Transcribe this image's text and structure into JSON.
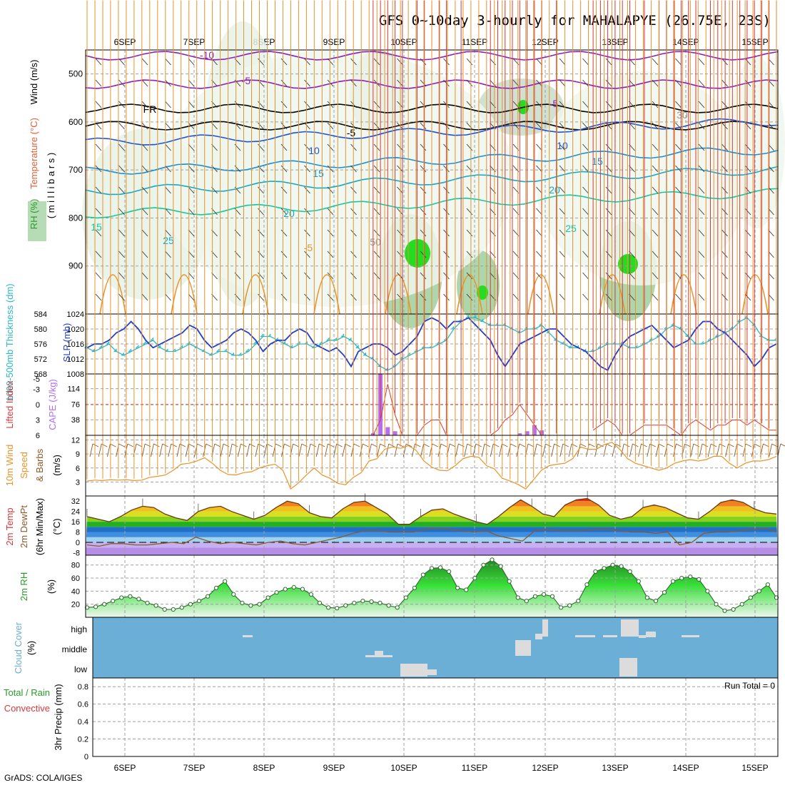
{
  "title": "GFS 0~10day 3-hourly for MAHALAPYE (26.75E, 23S)",
  "footer": "GrADS: COLA/IGES",
  "days": [
    "6SEP",
    "7SEP",
    "8SEP",
    "9SEP",
    "10SEP",
    "11SEP",
    "12SEP",
    "13SEP",
    "14SEP",
    "15SEP"
  ],
  "colors": {
    "grid": "#a0a0a0",
    "slp": "#1d3ecf",
    "thickness": "#2bb8c8",
    "lifted": "#d63a3a",
    "cape": "#b46ef0",
    "wind": "#e8932a",
    "rh": "#2a9a2a",
    "cloud": "#6baed6",
    "cloudbar": "#dcdcdc",
    "barb": "#8a5a2a"
  },
  "chart_data": [
    {
      "type": "area",
      "panel": "upper-air",
      "ylabel_parts": [
        {
          "text": "Wind (m/s)",
          "color": "#000000"
        },
        {
          "text": "Temperature (°C)",
          "color": "#e0603a"
        },
        {
          "text": "RH (%)",
          "color": "#2a9a2a"
        },
        {
          "text": "( m i l l i b a r s )",
          "color": "#000000"
        }
      ],
      "yticks": [
        500,
        600,
        700,
        800,
        900
      ],
      "ylim": [
        1000,
        450
      ],
      "contour_labels": [
        "-10",
        "-5",
        "FR",
        "-5",
        "10",
        "15",
        "20",
        "25",
        "15",
        "-5",
        "10",
        "15",
        "20",
        "25",
        "-5",
        "30",
        "50"
      ]
    },
    {
      "type": "line",
      "panel": "slp-thickness",
      "ylabel_left": "1000-500mb Thickness (dm)",
      "ylabel_right": "SLP (mb)",
      "yticks_left": [
        568,
        572,
        576,
        580,
        584
      ],
      "yticks_right": [
        1008,
        1012,
        1016,
        1020,
        1024
      ],
      "series": [
        {
          "name": "SLP (mb)",
          "values": [
            1015,
            1016,
            1016,
            1017,
            1019,
            1020,
            1022,
            1020,
            1017,
            1015,
            1016,
            1017,
            1018,
            1019,
            1021,
            1020,
            1017,
            1015,
            1016,
            1017,
            1019,
            1020,
            1019,
            1017,
            1014,
            1016,
            1017,
            1017,
            1019,
            1020,
            1019,
            1016,
            1015,
            1014,
            1015,
            1013,
            1010,
            1014,
            1015,
            1016,
            1016,
            1015,
            1013,
            1014,
            1016,
            1018,
            1022,
            1023,
            1022,
            1020,
            1022,
            1022,
            1023,
            1021,
            1019,
            1017,
            1013,
            1010,
            1013,
            1016,
            1017,
            1018,
            1019,
            1020,
            1020,
            1018,
            1016,
            1015,
            1014,
            1012,
            1010,
            1009,
            1013,
            1016,
            1018,
            1019,
            1020,
            1021,
            1019,
            1017,
            1015,
            1016,
            1017,
            1020,
            1022,
            1022,
            1020,
            1019,
            1017,
            1015,
            1013,
            1010,
            1012,
            1015,
            1016
          ]
        },
        {
          "name": "1000-500mb Thickness (dm)",
          "values": [
            575,
            574,
            575,
            576,
            574,
            573,
            574,
            575,
            576,
            577,
            575,
            574,
            574,
            575,
            576,
            575,
            574,
            573,
            574,
            574,
            573,
            573,
            574,
            576,
            578,
            578,
            577,
            576,
            575,
            576,
            576,
            575,
            576,
            577,
            577,
            578,
            577,
            575,
            573,
            572,
            570,
            569,
            570,
            572,
            573,
            574,
            575,
            575,
            576,
            577,
            580,
            582,
            583,
            583,
            582,
            581,
            581,
            581,
            580,
            579,
            580,
            580,
            581,
            579,
            577,
            576,
            575,
            575,
            574,
            574,
            575,
            576,
            576,
            576,
            575,
            575,
            576,
            577,
            578,
            580,
            581,
            580,
            578,
            576,
            576,
            577,
            578,
            579,
            580,
            582,
            583,
            581,
            578,
            577,
            577
          ]
        }
      ]
    },
    {
      "type": "bar",
      "panel": "stability",
      "ylabel_left": "Lifted Index",
      "ylabel_right": "CAPE (J/kg)",
      "yticks_left": [
        "-5",
        "-3",
        "0",
        "3",
        "6"
      ],
      "yticks_right": [
        38,
        76,
        114
      ],
      "series": [
        {
          "name": "CAPE (J/kg)",
          "x": [
            39,
            40,
            41,
            42,
            59,
            60,
            61,
            62,
            80
          ],
          "values": [
            5,
            150,
            20,
            10,
            5,
            10,
            25,
            12,
            3
          ]
        },
        {
          "name": "Lifted Index",
          "x": [
            39,
            40,
            41,
            42,
            43,
            45,
            46,
            47,
            48,
            49,
            51,
            55,
            56,
            57,
            58,
            59,
            60,
            61,
            62,
            64,
            69,
            70,
            71,
            72,
            73,
            74,
            76,
            78,
            79,
            80,
            81,
            82,
            83,
            85,
            86,
            87,
            88,
            89,
            90,
            91,
            92,
            93,
            94
          ],
          "values": [
            6,
            3,
            -4,
            2,
            6,
            6,
            4,
            3,
            3,
            6,
            6,
            6,
            5,
            3,
            2,
            0,
            2,
            4,
            6,
            6,
            5,
            4,
            3,
            4,
            6,
            6,
            4,
            4,
            4,
            5,
            6,
            4,
            3,
            5,
            4,
            4,
            3,
            3,
            4,
            3,
            4,
            5,
            5
          ]
        }
      ]
    },
    {
      "type": "line",
      "panel": "wind",
      "ylabel": "10m Wind Speed (m/s) & Barbs",
      "yticks": [
        3,
        6,
        9,
        12
      ],
      "series": [
        {
          "name": "10m Wind Speed",
          "values": [
            3.2,
            3.4,
            3.3,
            3.5,
            3.4,
            3.5,
            3.3,
            3.4,
            4,
            4.2,
            4.5,
            5.5,
            6.8,
            7,
            7.5,
            8.2,
            7,
            5.5,
            4.6,
            4.5,
            5,
            5.2,
            6,
            6.5,
            6.8,
            5.5,
            1.5,
            2.8,
            4.5,
            6,
            4.5,
            3.8,
            2.7,
            2.4,
            4,
            5,
            7.5,
            8,
            10,
            10.5,
            10.2,
            10.8,
            9.8,
            7.5,
            6.2,
            5.5,
            5.4,
            6.5,
            8,
            8.5,
            8.3,
            6.5,
            5.8,
            3.8,
            3.2,
            2.5,
            1.5,
            3.5,
            5.5,
            6.5,
            6.8,
            7,
            8,
            10.5,
            10,
            10,
            11,
            11.5,
            10,
            8,
            7,
            6.5,
            6,
            5.5,
            6,
            7,
            7.5,
            7.8,
            7.5,
            7.8,
            8.5,
            8.5,
            7,
            6,
            7,
            7.5,
            7.5,
            7.8,
            8.5
          ]
        }
      ]
    },
    {
      "type": "area",
      "panel": "temp",
      "ylabel": "2m Temp 2m DewPt (6hr Min/Max) (°C)",
      "yticks": [
        "-8",
        0,
        8,
        16,
        24,
        32
      ],
      "series": [
        {
          "name": "2m Temp",
          "values": [
            20,
            18,
            16,
            20,
            25,
            28,
            27,
            22,
            19,
            17,
            24,
            27,
            28,
            24,
            21,
            18,
            21,
            27,
            32,
            30,
            23,
            20,
            19,
            26,
            31,
            32,
            27,
            22,
            14,
            14,
            20,
            25,
            26,
            22,
            19,
            16,
            14,
            20,
            27,
            33,
            28,
            22,
            20,
            29,
            33,
            34,
            29,
            21,
            18,
            20,
            27,
            29,
            27,
            23,
            19,
            18,
            24,
            31,
            33,
            31,
            26,
            23,
            22
          ]
        },
        {
          "name": "2m DewPt",
          "values": [
            -2,
            -3,
            -1,
            -1,
            -2,
            -2,
            -1,
            0,
            -1,
            4,
            1,
            -1,
            0,
            -1,
            -2,
            0,
            1,
            -1,
            -2,
            0,
            2,
            4,
            7,
            9,
            9,
            8,
            8,
            8,
            10,
            11,
            10,
            9,
            8,
            9,
            5,
            3,
            1,
            9,
            10,
            9,
            9,
            9,
            10,
            10,
            9,
            8,
            8,
            7,
            8,
            -2,
            0,
            7,
            8,
            8,
            9,
            10,
            11,
            8
          ]
        }
      ]
    },
    {
      "type": "area",
      "panel": "rh",
      "ylabel": "2m RH (%)",
      "yticks": [
        20,
        40,
        60,
        80
      ],
      "series": [
        {
          "name": "2m RH",
          "values": [
            15,
            16,
            20,
            25,
            30,
            32,
            28,
            22,
            18,
            12,
            12,
            15,
            20,
            25,
            32,
            45,
            55,
            35,
            22,
            18,
            20,
            30,
            38,
            43,
            46,
            43,
            35,
            22,
            15,
            14,
            18,
            22,
            25,
            24,
            22,
            18,
            15,
            30,
            45,
            65,
            75,
            76,
            70,
            45,
            42,
            60,
            80,
            88,
            78,
            55,
            30,
            25,
            32,
            35,
            32,
            15,
            18,
            25,
            50,
            70,
            75,
            80,
            78,
            70,
            55,
            30,
            25,
            38,
            55,
            60,
            62,
            58,
            40,
            20,
            10,
            12,
            20,
            30,
            40,
            50,
            30
          ]
        }
      ]
    },
    {
      "type": "bar",
      "panel": "cloud",
      "ylabel": "Cloud Cover (%)",
      "levels": [
        "high",
        "middle",
        "low"
      ]
    },
    {
      "type": "bar",
      "panel": "precip",
      "ylabel_left": "Total / Rain",
      "ylabel_left2": "Convective",
      "ylabel": "3hr Precip (mm)",
      "yticks": [
        0,
        0.2,
        0.4,
        0.6,
        0.8
      ],
      "run_total_label": "Run Total = 0",
      "values": []
    }
  ]
}
